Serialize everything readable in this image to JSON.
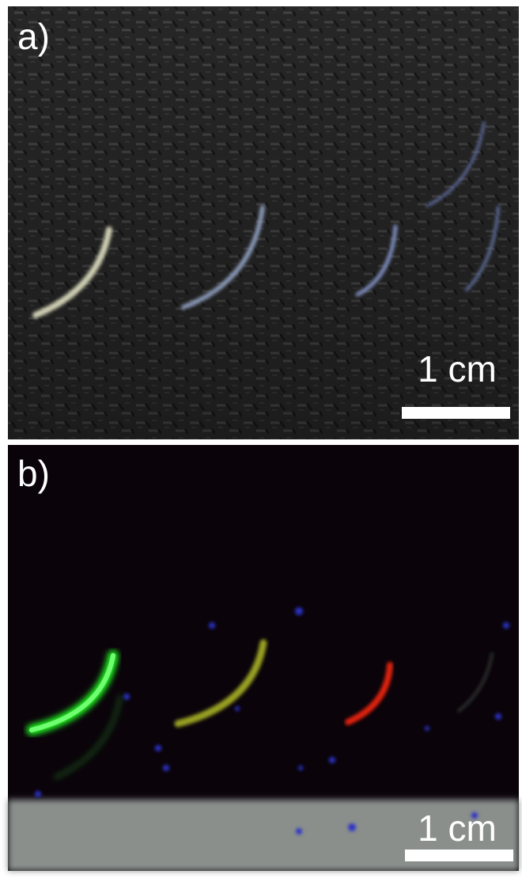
{
  "panels": [
    {
      "label": "a)",
      "scale_bar": "1 cm"
    },
    {
      "label": "b)",
      "scale_bar": "1 cm"
    }
  ]
}
